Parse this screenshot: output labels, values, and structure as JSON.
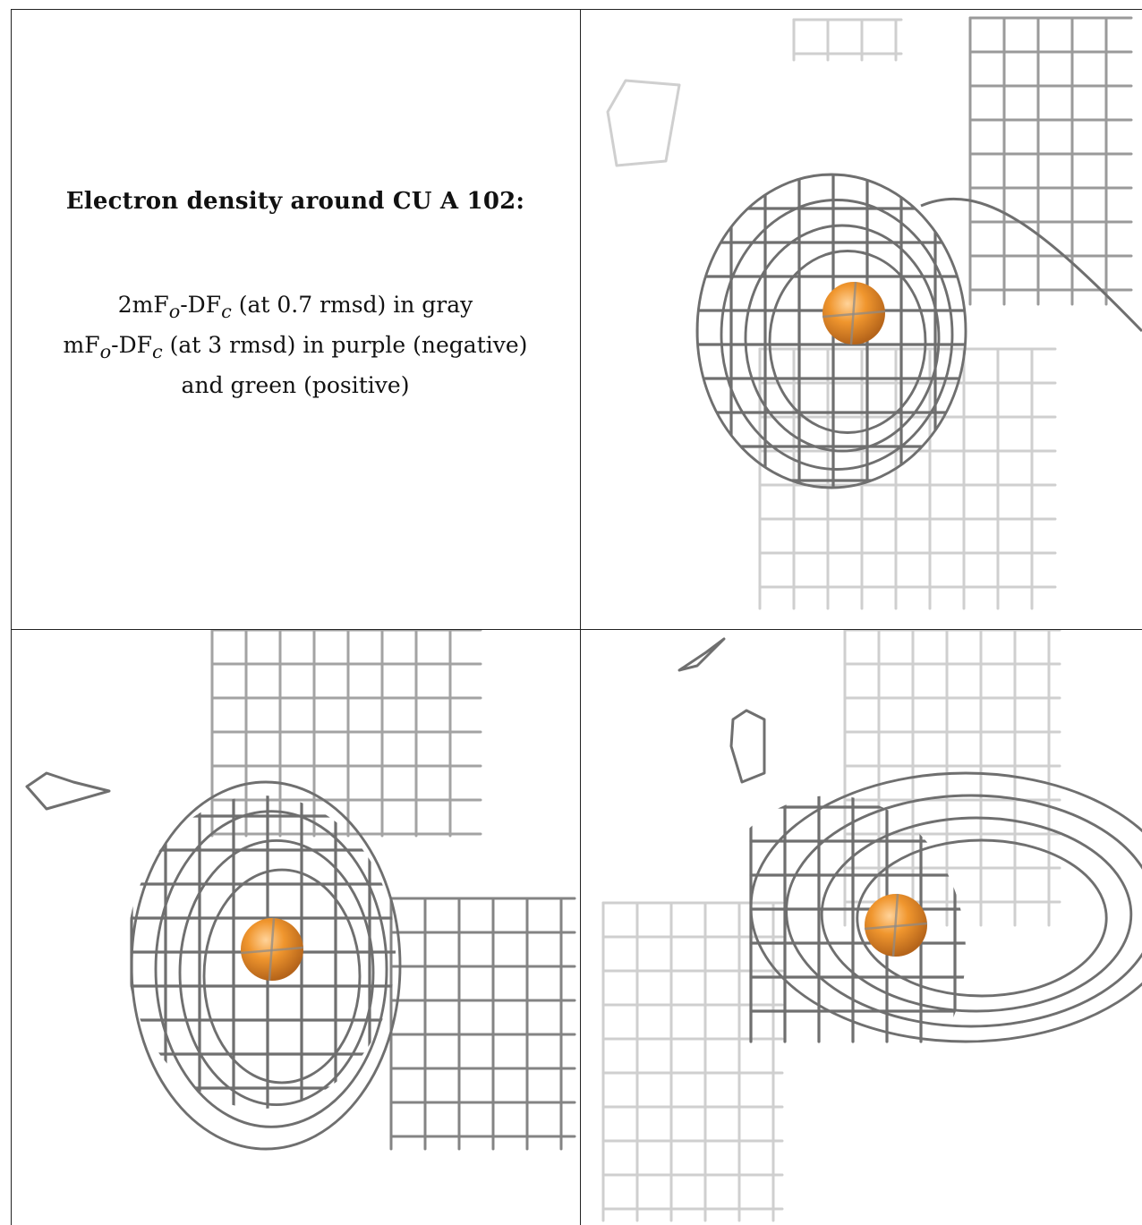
{
  "legend": {
    "title": "Electron density around CU A 102:",
    "line1": "2mFₒ-DF𝒸 (at 0.7 rmsd) in gray",
    "line1_parts": {
      "a": "2mF",
      "sub_o": "o",
      "b": "-DF",
      "sub_c": "c",
      "c": " (at 0.7 rmsd) in gray"
    },
    "line2_parts": {
      "a": "mF",
      "sub_o": "o",
      "b": "-DF",
      "sub_c": "c",
      "c": " (at 3 rmsd) in purple (negative)"
    },
    "line3": "and green (positive)"
  },
  "colors": {
    "mesh_dark": "#6f6f6f",
    "mesh_mid": "#9a9a9a",
    "mesh_light": "#cfcfcf",
    "atom": "#f0962e",
    "atom_shade": "#b5641a",
    "border": "#222222"
  },
  "panels": [
    {
      "name": "view-1",
      "atom": "copper-ion"
    },
    {
      "name": "view-2",
      "atom": "copper-ion"
    },
    {
      "name": "view-3",
      "atom": "copper-ion"
    }
  ]
}
